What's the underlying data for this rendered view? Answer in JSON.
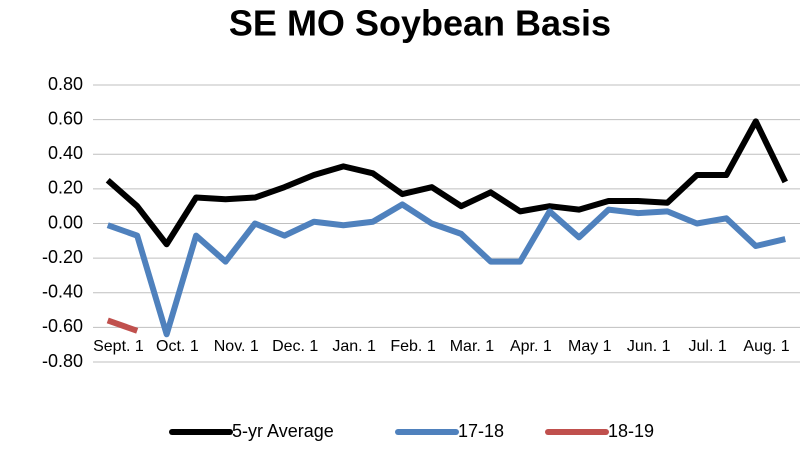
{
  "chart_data": {
    "type": "line",
    "title": "SE MO Soybean Basis",
    "categories": [
      "Sept. 1",
      null,
      "Oct. 1",
      null,
      "Nov. 1",
      null,
      "Dec. 1",
      null,
      "Jan. 1",
      null,
      "Feb. 1",
      null,
      "Mar. 1",
      null,
      "Apr. 1",
      null,
      "May 1",
      null,
      "Jun. 1",
      null,
      "Jul. 1",
      null,
      "Aug. 1",
      null
    ],
    "series": [
      {
        "name": "5-yr Average",
        "color": "#000000",
        "values": [
          0.25,
          0.1,
          -0.12,
          0.15,
          0.14,
          0.15,
          0.21,
          0.28,
          0.33,
          0.29,
          0.17,
          0.21,
          0.1,
          0.18,
          0.07,
          0.1,
          0.08,
          0.13,
          0.13,
          0.12,
          0.28,
          0.28,
          0.59,
          0.24
        ]
      },
      {
        "name": "17-18",
        "color": "#4f81bd",
        "values": [
          -0.01,
          -0.07,
          -0.64,
          -0.07,
          -0.22,
          0.0,
          -0.07,
          0.01,
          -0.01,
          0.01,
          0.11,
          0.0,
          -0.06,
          -0.22,
          -0.22,
          0.07,
          -0.08,
          0.08,
          0.06,
          0.07,
          0.0,
          0.03,
          -0.13,
          -0.09
        ]
      },
      {
        "name": "18-19",
        "color": "#c0504d",
        "values": [
          -0.56,
          -0.62,
          null,
          null,
          null,
          null,
          null,
          null,
          null,
          null,
          null,
          null,
          null,
          null,
          null,
          null,
          null,
          null,
          null,
          null,
          null,
          null,
          null,
          null
        ]
      }
    ],
    "ylim": [
      -0.8,
      0.8
    ],
    "yticks": [
      {
        "value": -0.8,
        "label": "-0.80"
      },
      {
        "value": -0.6,
        "label": "-0.60"
      },
      {
        "value": -0.4,
        "label": "-0.40"
      },
      {
        "value": -0.2,
        "label": "-0.20"
      },
      {
        "value": 0,
        "label": "0.00"
      },
      {
        "value": 0.2,
        "label": "0.20"
      },
      {
        "value": 0.4,
        "label": "0.40"
      },
      {
        "value": 0.6,
        "label": "0.60"
      },
      {
        "value": 0.8,
        "label": "0.80"
      }
    ],
    "grid": true
  }
}
